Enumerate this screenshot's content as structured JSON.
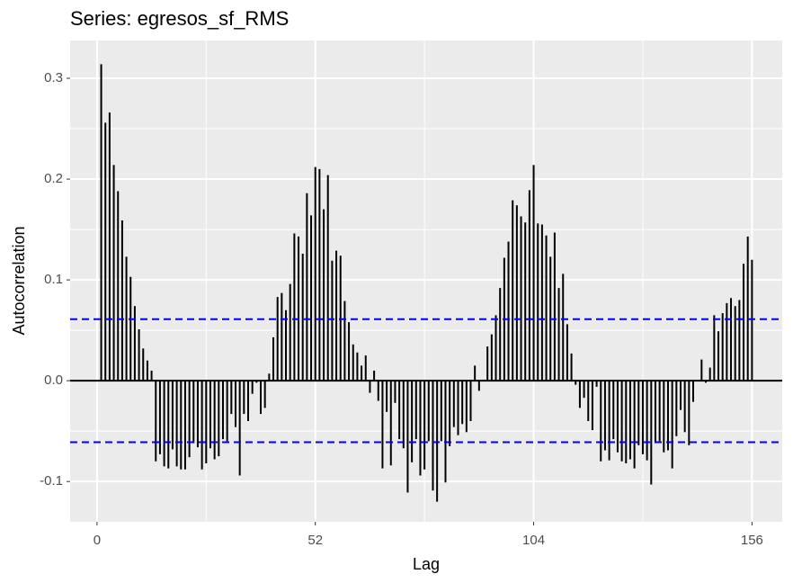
{
  "chart_data": {
    "type": "acf",
    "title": "Series: egresos_sf_RMS",
    "x_label": "Lag",
    "y_label": "Autocorrelation",
    "x": [
      1,
      2,
      3,
      4,
      5,
      6,
      7,
      8,
      9,
      10,
      11,
      12,
      13,
      14,
      15,
      16,
      17,
      18,
      19,
      20,
      21,
      22,
      23,
      24,
      25,
      26,
      27,
      28,
      29,
      30,
      31,
      32,
      33,
      34,
      35,
      36,
      37,
      38,
      39,
      40,
      41,
      42,
      43,
      44,
      45,
      46,
      47,
      48,
      49,
      50,
      51,
      52,
      53,
      54,
      55,
      56,
      57,
      58,
      59,
      60,
      61,
      62,
      63,
      64,
      65,
      66,
      67,
      68,
      69,
      70,
      71,
      72,
      73,
      74,
      75,
      76,
      77,
      78,
      79,
      80,
      81,
      82,
      83,
      84,
      85,
      86,
      87,
      88,
      89,
      90,
      91,
      92,
      93,
      94,
      95,
      96,
      97,
      98,
      99,
      100,
      101,
      102,
      103,
      104,
      105,
      106,
      107,
      108,
      109,
      110,
      111,
      112,
      113,
      114,
      115,
      116,
      117,
      118,
      119,
      120,
      121,
      122,
      123,
      124,
      125,
      126,
      127,
      128,
      129,
      130,
      131,
      132,
      133,
      134,
      135,
      136,
      137,
      138,
      139,
      140,
      141,
      142,
      143,
      144,
      145,
      146,
      147,
      148,
      149,
      150,
      151,
      152,
      153,
      154,
      155,
      156
    ],
    "values": [
      0.314,
      0.256,
      0.266,
      0.214,
      0.188,
      0.159,
      0.123,
      0.103,
      0.074,
      0.051,
      0.032,
      0.02,
      0.01,
      -0.08,
      -0.073,
      -0.085,
      -0.087,
      -0.068,
      -0.085,
      -0.088,
      -0.088,
      -0.076,
      -0.062,
      -0.066,
      -0.088,
      -0.082,
      -0.067,
      -0.078,
      -0.075,
      -0.058,
      -0.06,
      -0.033,
      -0.046,
      -0.094,
      -0.033,
      -0.04,
      -0.013,
      -0.002,
      -0.033,
      -0.027,
      0.007,
      0.043,
      0.083,
      0.087,
      0.07,
      0.096,
      0.146,
      0.143,
      0.126,
      0.186,
      0.164,
      0.212,
      0.21,
      0.17,
      0.204,
      0.119,
      0.129,
      0.124,
      0.079,
      0.058,
      0.036,
      0.028,
      0.015,
      0.025,
      -0.012,
      0.01,
      -0.02,
      -0.087,
      -0.031,
      -0.084,
      -0.022,
      -0.058,
      -0.067,
      -0.111,
      -0.081,
      -0.058,
      -0.094,
      -0.088,
      -0.06,
      -0.109,
      -0.12,
      -0.06,
      -0.101,
      -0.065,
      -0.046,
      -0.054,
      -0.043,
      -0.051,
      -0.04,
      0.015,
      -0.01,
      0.001,
      0.034,
      0.046,
      0.065,
      0.092,
      0.122,
      0.138,
      0.179,
      0.174,
      0.163,
      0.157,
      0.189,
      0.214,
      0.156,
      0.155,
      0.144,
      0.123,
      0.147,
      0.092,
      0.106,
      0.056,
      0.027,
      -0.004,
      -0.027,
      -0.017,
      -0.04,
      -0.049,
      -0.006,
      -0.08,
      -0.069,
      -0.079,
      -0.058,
      -0.071,
      -0.08,
      -0.082,
      -0.078,
      -0.087,
      -0.064,
      -0.073,
      -0.079,
      -0.103,
      -0.062,
      -0.06,
      -0.071,
      -0.069,
      -0.087,
      -0.055,
      -0.029,
      -0.051,
      -0.064,
      -0.021,
      0.0,
      0.021,
      -0.002,
      0.013,
      0.065,
      0.049,
      0.067,
      0.077,
      0.082,
      0.074,
      0.08,
      0.116,
      0.143,
      0.12
    ],
    "color": "#000000",
    "ci_lines": [
      0.061,
      -0.061
    ],
    "ci_color": "#0000ff",
    "xlim": [
      -6.4,
      163.2
    ],
    "xticks": [
      0,
      52,
      104,
      156
    ],
    "ylim": [
      -0.14,
      0.3375
    ],
    "yticks": [
      -0.1,
      {
        "value": 0,
        "label": "0.0"
      },
      0.1,
      0.2,
      0.3
    ],
    "grid": true
  }
}
